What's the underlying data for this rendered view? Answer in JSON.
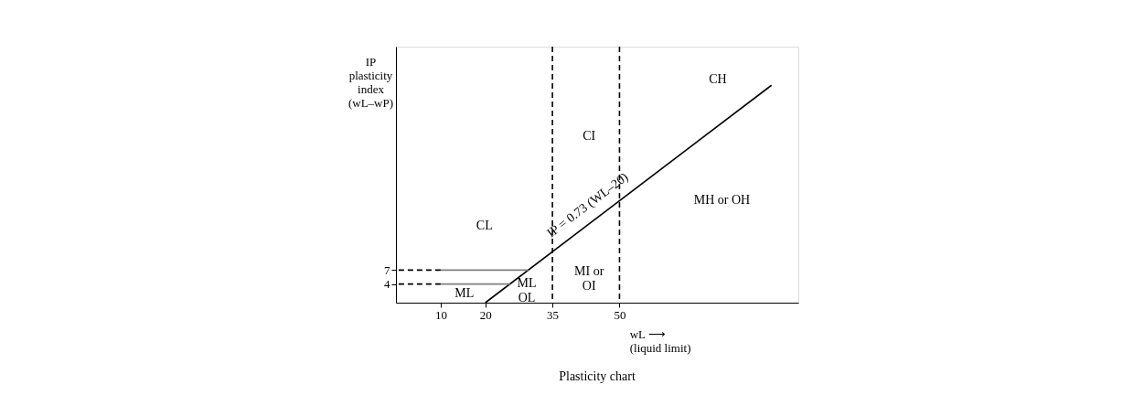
{
  "chart_data": {
    "type": "line",
    "title": "Plasticity chart",
    "xlabel": "wL ⟶\n(liquid limit)",
    "ylabel": "IP\nplasticity\nindex\n(wL–wP)",
    "xlim": [
      0,
      90
    ],
    "ylim": [
      0,
      55
    ],
    "xticks": [
      10,
      20,
      35,
      50
    ],
    "yticks": [
      4,
      7
    ],
    "series": [
      {
        "color": "#000000",
        "x": [
          20,
          84
        ],
        "values": [
          0,
          46.7
        ]
      },
      {
        "color": "#7f7f7f",
        "x": [
          10,
          25.5
        ],
        "values": [
          4,
          4
        ]
      },
      {
        "color": "#7f7f7f",
        "x": [
          10,
          29.6
        ],
        "values": [
          7,
          7
        ]
      },
      {
        "color": "#000000",
        "line_style": "dashed",
        "x": [
          0,
          10
        ],
        "values": [
          4,
          4
        ]
      },
      {
        "color": "#000000",
        "line_style": "dashed",
        "x": [
          0,
          10
        ],
        "values": [
          7,
          7
        ]
      }
    ],
    "ref_lines": [
      {
        "axis": "x",
        "value": 35,
        "color": "#000000",
        "line_style": "dashed"
      },
      {
        "axis": "x",
        "value": 50,
        "color": "#000000",
        "line_style": "dashed"
      }
    ],
    "annotations": [
      {
        "text": "IP = 0.73 (WL–20)",
        "x": 45,
        "y": 18.25
      },
      "CL",
      "CI",
      "CH",
      "MH or OH",
      "MI or\nOI",
      "ML",
      "ML\nOL"
    ],
    "grid": false
  }
}
